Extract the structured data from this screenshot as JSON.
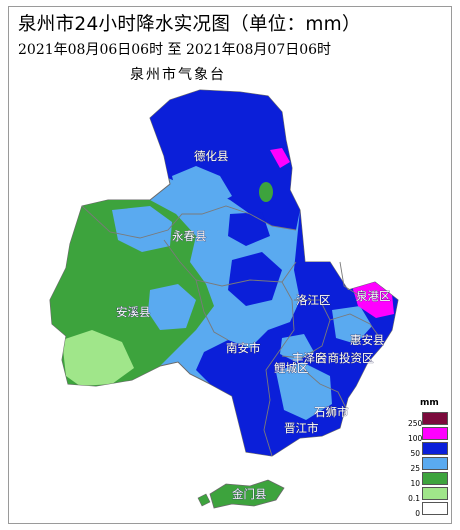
{
  "title": "泉州市24小时降水实况图（单位：mm）",
  "period": "2021年08月06日06时  至  2021年08月07日06时",
  "issuer": "泉州市气象台",
  "places": [
    {
      "id": "dehua",
      "name": "德化县"
    },
    {
      "id": "yongchun",
      "name": "永春县"
    },
    {
      "id": "anxi",
      "name": "安溪县"
    },
    {
      "id": "nanan",
      "name": "南安市"
    },
    {
      "id": "luojiang",
      "name": "洛江区"
    },
    {
      "id": "quangang",
      "name": "泉港区"
    },
    {
      "id": "huian",
      "name": "惠安县"
    },
    {
      "id": "fengze",
      "name": "丰泽区"
    },
    {
      "id": "taishang",
      "name": "台商投资区"
    },
    {
      "id": "licheng",
      "name": "鲤城区"
    },
    {
      "id": "shishi",
      "name": "石狮市"
    },
    {
      "id": "jinjiang",
      "name": "晋江市"
    },
    {
      "id": "jinmen",
      "name": "金门县"
    }
  ],
  "legend": {
    "unit": "mm",
    "classes": [
      {
        "label": "250",
        "color": "#7b0a3c"
      },
      {
        "label": "100",
        "color": "#ff00ff"
      },
      {
        "label": "50",
        "color": "#0b1fd9"
      },
      {
        "label": "25",
        "color": "#5aaaf0"
      },
      {
        "label": "10",
        "color": "#3da33d"
      },
      {
        "label": "0.1",
        "color": "#a0e68a"
      },
      {
        "label": "0",
        "color": "#ffffff"
      }
    ]
  }
}
